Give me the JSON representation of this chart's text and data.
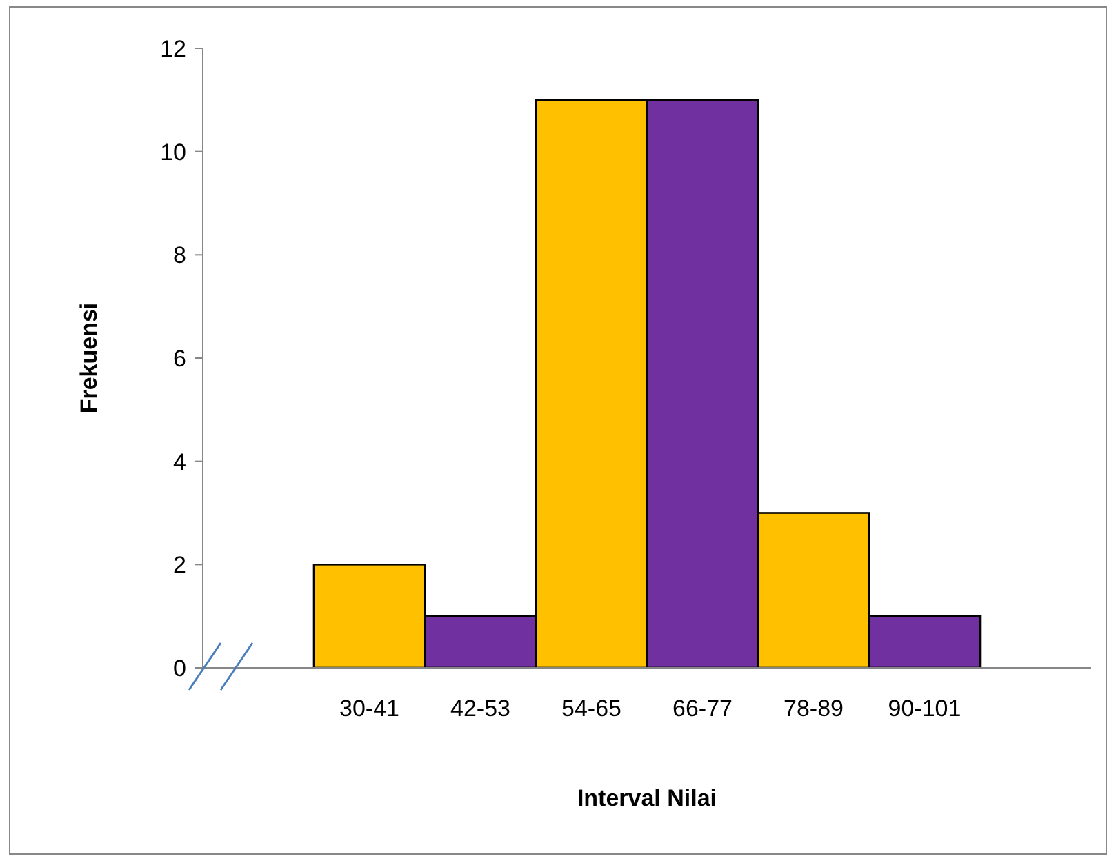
{
  "chart_data": {
    "type": "bar",
    "xlabel": "Interval Nilai",
    "ylabel": "Frekuensi",
    "categories": [
      "30-41",
      "42-53",
      "54-65",
      "66-77",
      "78-89",
      "90-101"
    ],
    "values": [
      2,
      1,
      11,
      11,
      3,
      1
    ],
    "colors": [
      "#ffc000",
      "#7030a0",
      "#ffc000",
      "#7030a0",
      "#ffc000",
      "#7030a0"
    ],
    "ylim": [
      0,
      12
    ],
    "yticks": [
      0,
      2,
      4,
      6,
      8,
      10,
      12
    ],
    "grid": false
  }
}
